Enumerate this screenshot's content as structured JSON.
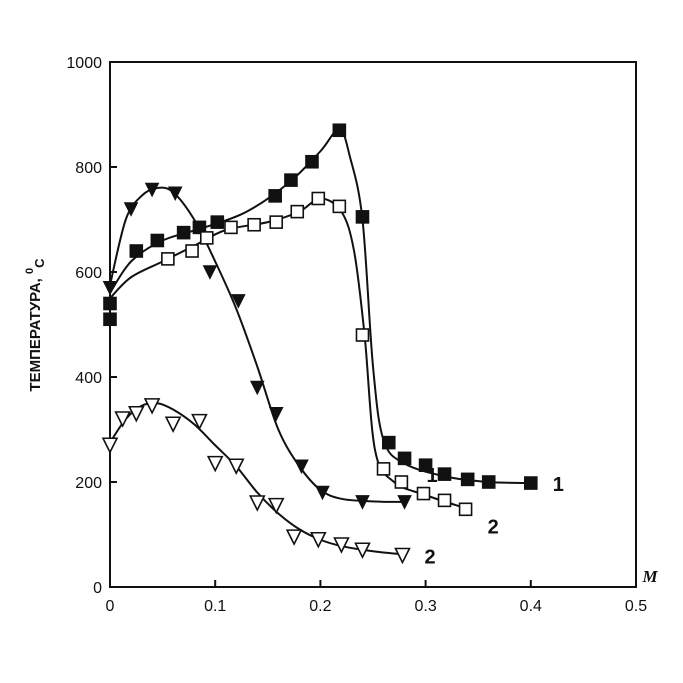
{
  "chart_data": {
    "type": "scatter",
    "title": "",
    "xlabel": "M",
    "ylabel": "ТЕМПЕРАТУРА, °C",
    "ylabel_text": "ТЕМПЕРАТУРА, ",
    "ylabel_sup": "0",
    "ylabel_sub": "C",
    "xlim": [
      0,
      0.5
    ],
    "ylim": [
      0,
      1000
    ],
    "x_ticks": [
      "0",
      "0.1",
      "0.2",
      "0.3",
      "0.4",
      "0.5"
    ],
    "x_tick_values": [
      0,
      0.1,
      0.2,
      0.3,
      0.4,
      0.5
    ],
    "y_ticks": [
      "0",
      "200",
      "400",
      "600",
      "800",
      "1000"
    ],
    "y_tick_values": [
      0,
      200,
      400,
      600,
      800,
      1000
    ],
    "grid": false,
    "series": [
      {
        "label": "1",
        "marker": "filled-square",
        "color": "#111111",
        "points": [
          [
            0,
            510
          ],
          [
            0,
            540
          ],
          [
            0.025,
            640
          ],
          [
            0.045,
            660
          ],
          [
            0.07,
            675
          ],
          [
            0.085,
            685
          ],
          [
            0.102,
            695
          ],
          [
            0.157,
            745
          ],
          [
            0.172,
            775
          ],
          [
            0.192,
            810
          ],
          [
            0.218,
            870
          ],
          [
            0.24,
            705
          ],
          [
            0.265,
            275
          ],
          [
            0.28,
            245
          ],
          [
            0.3,
            232
          ],
          [
            0.318,
            215
          ],
          [
            0.34,
            205
          ],
          [
            0.36,
            200
          ],
          [
            0.4,
            198
          ]
        ],
        "curve": [
          [
            0,
            560
          ],
          [
            0.02,
            620
          ],
          [
            0.05,
            660
          ],
          [
            0.09,
            685
          ],
          [
            0.13,
            715
          ],
          [
            0.17,
            770
          ],
          [
            0.2,
            830
          ],
          [
            0.218,
            872
          ],
          [
            0.228,
            820
          ],
          [
            0.24,
            700
          ],
          [
            0.25,
            420
          ],
          [
            0.26,
            280
          ],
          [
            0.28,
            235
          ],
          [
            0.32,
            210
          ],
          [
            0.36,
            200
          ],
          [
            0.4,
            198
          ]
        ]
      },
      {
        "label": "2",
        "marker": "open-square",
        "color": "#111111",
        "points": [
          [
            0.055,
            625
          ],
          [
            0.078,
            640
          ],
          [
            0.092,
            665
          ],
          [
            0.115,
            685
          ],
          [
            0.137,
            690
          ],
          [
            0.158,
            695
          ],
          [
            0.178,
            715
          ],
          [
            0.198,
            740
          ],
          [
            0.218,
            725
          ],
          [
            0.24,
            480
          ],
          [
            0.26,
            225
          ],
          [
            0.277,
            200
          ],
          [
            0.298,
            178
          ],
          [
            0.318,
            165
          ],
          [
            0.338,
            148
          ]
        ],
        "curve": [
          [
            0,
            550
          ],
          [
            0.02,
            590
          ],
          [
            0.05,
            620
          ],
          [
            0.08,
            650
          ],
          [
            0.11,
            680
          ],
          [
            0.15,
            695
          ],
          [
            0.18,
            715
          ],
          [
            0.2,
            740
          ],
          [
            0.22,
            715
          ],
          [
            0.232,
            640
          ],
          [
            0.242,
            480
          ],
          [
            0.252,
            260
          ],
          [
            0.27,
            200
          ],
          [
            0.3,
            175
          ],
          [
            0.338,
            150
          ]
        ]
      },
      {
        "label": "1",
        "marker": "filled-triangle-down",
        "color": "#111111",
        "points": [
          [
            0,
            570
          ],
          [
            0.02,
            720
          ],
          [
            0.04,
            757
          ],
          [
            0.062,
            750
          ],
          [
            0.095,
            600
          ],
          [
            0.122,
            545
          ],
          [
            0.14,
            380
          ],
          [
            0.158,
            330
          ],
          [
            0.182,
            230
          ],
          [
            0.202,
            180
          ],
          [
            0.24,
            162
          ],
          [
            0.28,
            162
          ]
        ],
        "curve": [
          [
            0,
            575
          ],
          [
            0.015,
            700
          ],
          [
            0.03,
            745
          ],
          [
            0.045,
            760
          ],
          [
            0.06,
            752
          ],
          [
            0.08,
            700
          ],
          [
            0.1,
            620
          ],
          [
            0.12,
            530
          ],
          [
            0.14,
            420
          ],
          [
            0.16,
            300
          ],
          [
            0.18,
            230
          ],
          [
            0.2,
            185
          ],
          [
            0.22,
            168
          ],
          [
            0.25,
            163
          ],
          [
            0.28,
            162
          ]
        ]
      },
      {
        "label": "2",
        "marker": "open-triangle-down",
        "color": "#111111",
        "points": [
          [
            0,
            270
          ],
          [
            0.012,
            320
          ],
          [
            0.025,
            330
          ],
          [
            0.04,
            345
          ],
          [
            0.06,
            310
          ],
          [
            0.085,
            315
          ],
          [
            0.1,
            235
          ],
          [
            0.12,
            230
          ],
          [
            0.14,
            160
          ],
          [
            0.158,
            155
          ],
          [
            0.175,
            95
          ],
          [
            0.198,
            90
          ],
          [
            0.22,
            80
          ],
          [
            0.24,
            70
          ],
          [
            0.278,
            60
          ]
        ],
        "curve": [
          [
            0,
            275
          ],
          [
            0.015,
            320
          ],
          [
            0.03,
            345
          ],
          [
            0.045,
            350
          ],
          [
            0.06,
            338
          ],
          [
            0.08,
            310
          ],
          [
            0.1,
            270
          ],
          [
            0.12,
            230
          ],
          [
            0.14,
            180
          ],
          [
            0.16,
            140
          ],
          [
            0.18,
            110
          ],
          [
            0.2,
            90
          ],
          [
            0.22,
            78
          ],
          [
            0.25,
            68
          ],
          [
            0.28,
            62
          ]
        ]
      }
    ]
  }
}
